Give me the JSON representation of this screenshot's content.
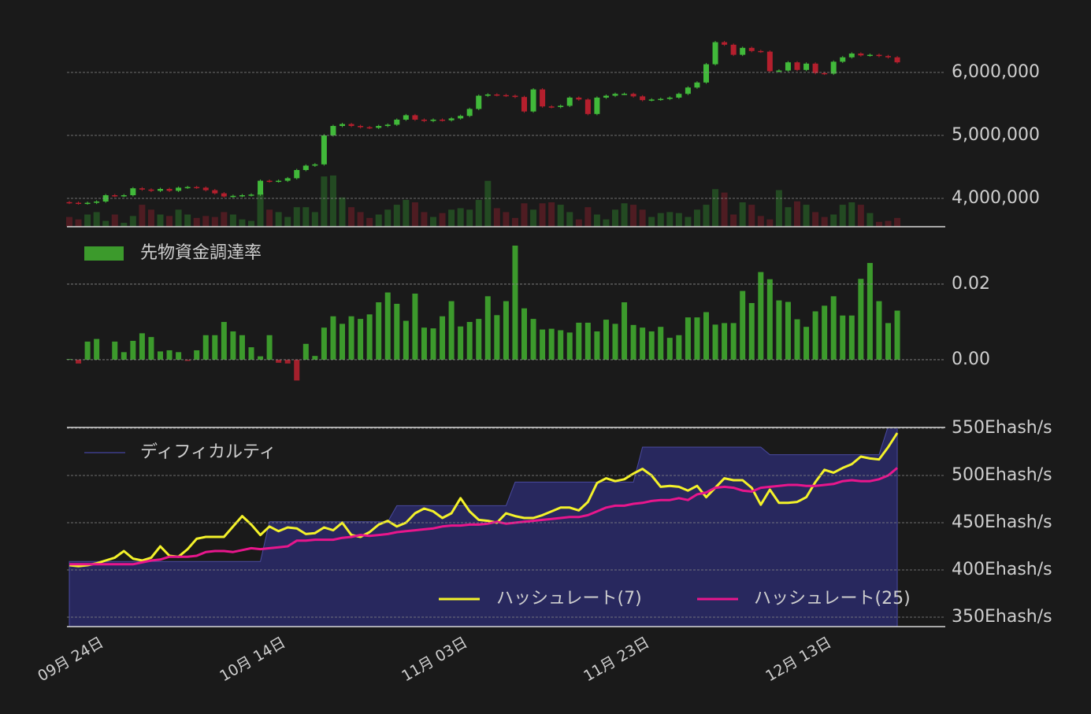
{
  "chart_data": [
    {
      "type": "candlestick",
      "open": [
        3940000,
        3930000,
        3920000,
        3930000,
        3950000,
        4050000,
        4040000,
        4050000,
        4160000,
        4140000,
        4120000,
        4150000,
        4120000,
        4170000,
        4180000,
        4170000,
        4130000,
        4080000,
        4030000,
        4040000,
        4050000,
        4060000,
        4280000,
        4270000,
        4280000,
        4320000,
        4450000,
        4520000,
        4540000,
        5000000,
        5150000,
        5180000,
        5150000,
        5130000,
        5120000,
        5150000,
        5170000,
        5250000,
        5320000,
        5250000,
        5230000,
        5250000,
        5240000,
        5270000,
        5310000,
        5420000,
        5630000,
        5650000,
        5640000,
        5630000,
        5610000,
        5380000,
        5730000,
        5460000,
        5450000,
        5470000,
        5600000,
        5570000,
        5340000,
        5600000,
        5630000,
        5660000,
        5660000,
        5620000,
        5560000,
        5570000,
        5580000,
        5600000,
        5660000,
        5760000,
        5840000,
        6130000,
        6480000,
        6440000,
        6280000,
        6390000,
        6340000,
        6330000,
        6020000,
        6030000,
        6160000,
        6040000,
        6140000,
        5990000,
        5980000,
        6170000,
        6240000,
        6300000,
        6270000,
        6280000,
        6260000,
        6240000
      ],
      "high": [
        3960000,
        3950000,
        3950000,
        3970000,
        4070000,
        4070000,
        4070000,
        4180000,
        4180000,
        4160000,
        4170000,
        4170000,
        4190000,
        4200000,
        4200000,
        4190000,
        4150000,
        4100000,
        4060000,
        4070000,
        4080000,
        4300000,
        4300000,
        4300000,
        4340000,
        4470000,
        4540000,
        4560000,
        5020000,
        5170000,
        5200000,
        5200000,
        5170000,
        5150000,
        5170000,
        5190000,
        5270000,
        5340000,
        5340000,
        5270000,
        5270000,
        5270000,
        5290000,
        5330000,
        5440000,
        5650000,
        5670000,
        5670000,
        5660000,
        5650000,
        5630000,
        5750000,
        5750000,
        5480000,
        5490000,
        5620000,
        5620000,
        5590000,
        5620000,
        5650000,
        5680000,
        5680000,
        5680000,
        5640000,
        5590000,
        5600000,
        5620000,
        5680000,
        5780000,
        5860000,
        6150000,
        6500000,
        6500000,
        6460000,
        6410000,
        6410000,
        6360000,
        6350000,
        6050000,
        6180000,
        6180000,
        6160000,
        6160000,
        6010000,
        6190000,
        6260000,
        6320000,
        6320000,
        6300000,
        6300000,
        6280000,
        6260000
      ],
      "low": [
        3910000,
        3900000,
        3900000,
        3910000,
        3930000,
        4020000,
        4020000,
        4030000,
        4120000,
        4100000,
        4100000,
        4100000,
        4100000,
        4150000,
        4150000,
        4110000,
        4060000,
        4010000,
        4010000,
        4020000,
        4030000,
        4040000,
        4250000,
        4250000,
        4260000,
        4300000,
        4430000,
        4500000,
        4520000,
        4980000,
        5130000,
        5130000,
        5110000,
        5100000,
        5100000,
        5130000,
        5150000,
        5230000,
        5230000,
        5210000,
        5210000,
        5220000,
        5220000,
        5250000,
        5290000,
        5400000,
        5610000,
        5620000,
        5610000,
        5590000,
        5360000,
        5360000,
        5440000,
        5430000,
        5430000,
        5450000,
        5550000,
        5320000,
        5320000,
        5580000,
        5610000,
        5640000,
        5600000,
        5540000,
        5540000,
        5550000,
        5560000,
        5580000,
        5640000,
        5740000,
        5820000,
        6110000,
        6420000,
        6260000,
        6260000,
        6320000,
        6310000,
        6000000,
        6000000,
        6010000,
        6020000,
        6020000,
        5970000,
        5960000,
        5960000,
        6150000,
        6220000,
        6250000,
        6250000,
        6240000,
        6220000,
        6140000
      ],
      "close": [
        3930000,
        3920000,
        3930000,
        3950000,
        4050000,
        4040000,
        4050000,
        4160000,
        4140000,
        4120000,
        4150000,
        4120000,
        4170000,
        4180000,
        4170000,
        4130000,
        4080000,
        4030000,
        4040000,
        4050000,
        4060000,
        4280000,
        4270000,
        4280000,
        4320000,
        4450000,
        4520000,
        4540000,
        5000000,
        5150000,
        5180000,
        5150000,
        5130000,
        5120000,
        5150000,
        5170000,
        5250000,
        5320000,
        5250000,
        5230000,
        5250000,
        5240000,
        5270000,
        5310000,
        5420000,
        5630000,
        5650000,
        5640000,
        5630000,
        5610000,
        5380000,
        5730000,
        5460000,
        5450000,
        5470000,
        5600000,
        5570000,
        5340000,
        5600000,
        5630000,
        5660000,
        5660000,
        5620000,
        5560000,
        5570000,
        5580000,
        5600000,
        5660000,
        5760000,
        5840000,
        6130000,
        6480000,
        6440000,
        6280000,
        6390000,
        6340000,
        6330000,
        6020000,
        6030000,
        6160000,
        6040000,
        6140000,
        5990000,
        5980000,
        6170000,
        6240000,
        6300000,
        6270000,
        6280000,
        6260000,
        6240000,
        6160000
      ],
      "volume": [
        20,
        15,
        25,
        30,
        12,
        25,
        8,
        22,
        45,
        35,
        25,
        22,
        35,
        25,
        18,
        22,
        20,
        30,
        25,
        15,
        12,
        70,
        35,
        30,
        20,
        40,
        40,
        30,
        103,
        105,
        60,
        40,
        30,
        18,
        25,
        35,
        45,
        55,
        50,
        30,
        20,
        28,
        35,
        38,
        35,
        55,
        94,
        38,
        30,
        18,
        48,
        35,
        48,
        50,
        45,
        30,
        15,
        40,
        25,
        15,
        35,
        48,
        45,
        35,
        20,
        28,
        30,
        28,
        20,
        35,
        45,
        77,
        70,
        25,
        50,
        45,
        22,
        15,
        75,
        40,
        52,
        45,
        30,
        20,
        25,
        45,
        50,
        45,
        28,
        10,
        12,
        18
      ],
      "colors": {
        "up": "#41b93a",
        "down": "#b41f2d"
      },
      "volume_colors": {
        "up": "#234a22",
        "down": "#4e1c22"
      },
      "ylim": [
        3550000,
        6650000
      ],
      "yticks": [
        {
          "value": 4000000,
          "label": "4,000,000"
        },
        {
          "value": 5000000,
          "label": "5,000,000"
        },
        {
          "value": 6000000,
          "label": "6,000,000"
        }
      ],
      "y2lim": [
        0,
        400
      ],
      "grid": true
    },
    {
      "type": "bar",
      "series": [
        {
          "name": "先物資金調達率",
          "color": "#3c9a2c",
          "negative_color": "#a4202c",
          "values": [
            0.0002,
            -0.001,
            0.0048,
            0.0055,
            0.0,
            0.0048,
            0.002,
            0.005,
            0.007,
            0.006,
            0.0022,
            0.0025,
            0.002,
            -0.0003,
            0.0025,
            0.0065,
            0.0065,
            0.01,
            0.0075,
            0.0065,
            0.0033,
            0.0009,
            0.0065,
            -0.0008,
            -0.001,
            -0.0055,
            0.0042,
            0.001,
            0.0085,
            0.0115,
            0.0095,
            0.0115,
            0.0108,
            0.012,
            0.0152,
            0.0178,
            0.0148,
            0.0103,
            0.0175,
            0.0085,
            0.0083,
            0.0115,
            0.0155,
            0.0088,
            0.01,
            0.0108,
            0.0168,
            0.0118,
            0.0155,
            0.0302,
            0.0136,
            0.0108,
            0.008,
            0.0082,
            0.0078,
            0.0072,
            0.0098,
            0.0098,
            0.0075,
            0.0106,
            0.0095,
            0.0152,
            0.0092,
            0.0085,
            0.0075,
            0.0087,
            0.0058,
            0.0065,
            0.0112,
            0.0112,
            0.0126,
            0.0093,
            0.0097,
            0.0097,
            0.0182,
            0.015,
            0.0232,
            0.0213,
            0.0157,
            0.0153,
            0.0107,
            0.0087,
            0.0128,
            0.0143,
            0.0168,
            0.0117,
            0.0117,
            0.0214,
            0.0256,
            0.0155,
            0.0097,
            0.013
          ]
        }
      ],
      "ylim": [
        -0.0173,
        0.0352
      ],
      "yticks": [
        {
          "value": 0,
          "label": "0.00"
        },
        0.02
      ],
      "grid": true
    },
    {
      "type": "line",
      "categories": [
        "09月 24日",
        null,
        null,
        null,
        null,
        null,
        null,
        null,
        null,
        null,
        null,
        null,
        null,
        null,
        null,
        null,
        null,
        null,
        null,
        null,
        "10月 14日",
        null,
        null,
        null,
        null,
        null,
        null,
        null,
        null,
        null,
        null,
        null,
        null,
        null,
        null,
        null,
        null,
        null,
        null,
        null,
        "11月 03日",
        null,
        null,
        null,
        null,
        null,
        null,
        null,
        null,
        null,
        null,
        null,
        null,
        null,
        null,
        null,
        null,
        null,
        null,
        null,
        "11月 23日",
        null,
        null,
        null,
        null,
        null,
        null,
        null,
        null,
        null,
        null,
        null,
        null,
        null,
        null,
        null,
        null,
        null,
        null,
        null,
        "12月 13日",
        null,
        null,
        null,
        null,
        null,
        null,
        null,
        null,
        null,
        null,
        null
      ],
      "series": [
        {
          "name": "ディフィカルティ",
          "kind": "area",
          "color": "#28285e",
          "values": [
            409,
            409,
            409,
            409,
            409,
            409,
            409,
            409,
            409,
            409,
            409,
            409,
            409,
            409,
            409,
            409,
            409,
            409,
            409,
            409,
            409,
            409,
            451,
            451,
            451,
            451,
            451,
            451,
            451,
            451,
            451,
            451,
            451,
            451,
            451,
            451,
            468,
            468,
            468,
            468,
            468,
            468,
            468,
            468,
            468,
            468,
            468,
            468,
            468,
            493,
            493,
            493,
            493,
            493,
            493,
            493,
            493,
            493,
            493,
            493,
            493,
            493,
            493,
            530,
            530,
            530,
            530,
            530,
            530,
            530,
            530,
            530,
            530,
            530,
            530,
            530,
            530,
            522,
            522,
            522,
            522,
            522,
            522,
            522,
            522,
            522,
            522,
            522,
            522,
            522,
            552,
            552
          ]
        },
        {
          "name": "ハッシュレート(7)",
          "color": "#f4f22a",
          "values": [
            405,
            404,
            405,
            407,
            410,
            413,
            420,
            412,
            410,
            413,
            425,
            415,
            414,
            422,
            433,
            435,
            435,
            435,
            446,
            457,
            448,
            437,
            446,
            441,
            445,
            444,
            438,
            439,
            445,
            442,
            450,
            437,
            435,
            440,
            448,
            452,
            446,
            450,
            460,
            465,
            462,
            455,
            460,
            476,
            462,
            453,
            452,
            450,
            460,
            457,
            455,
            455,
            458,
            462,
            466,
            466,
            463,
            472,
            492,
            497,
            494,
            496,
            502,
            507,
            500,
            488,
            489,
            488,
            484,
            489,
            477,
            487,
            497,
            495,
            495,
            487,
            469,
            485,
            471,
            471,
            472,
            477,
            493,
            506,
            503,
            508,
            512,
            520,
            518,
            517,
            530,
            545
          ]
        },
        {
          "name": "ハッシュレート(25)",
          "color": "#e8168c",
          "values": [
            406,
            406,
            406,
            406,
            406,
            406,
            406,
            406,
            408,
            410,
            411,
            414,
            414,
            414,
            415,
            419,
            420,
            420,
            419,
            421,
            423,
            422,
            423,
            424,
            425,
            431,
            431,
            432,
            432,
            432,
            434,
            435,
            437,
            436,
            437,
            438,
            440,
            441,
            442,
            443,
            444,
            446,
            447,
            447,
            448,
            448,
            449,
            451,
            449,
            450,
            451,
            452,
            453,
            454,
            455,
            456,
            456,
            458,
            462,
            466,
            468,
            468,
            470,
            471,
            473,
            474,
            474,
            476,
            474,
            480,
            482,
            487,
            488,
            487,
            484,
            483,
            487,
            488,
            489,
            490,
            490,
            489,
            489,
            490,
            491,
            494,
            495,
            494,
            494,
            496,
            500,
            508
          ]
        }
      ],
      "ylim": [
        340,
        550
      ],
      "yticks": [
        {
          "value": 350,
          "label": "350Ehash/s"
        },
        {
          "value": 400,
          "label": "400Ehash/s"
        },
        {
          "value": 450,
          "label": "450Ehash/s"
        },
        {
          "value": 500,
          "label": "500Ehash/s"
        },
        {
          "value": 550,
          "label": "550Ehash/s"
        }
      ],
      "grid": true
    }
  ]
}
